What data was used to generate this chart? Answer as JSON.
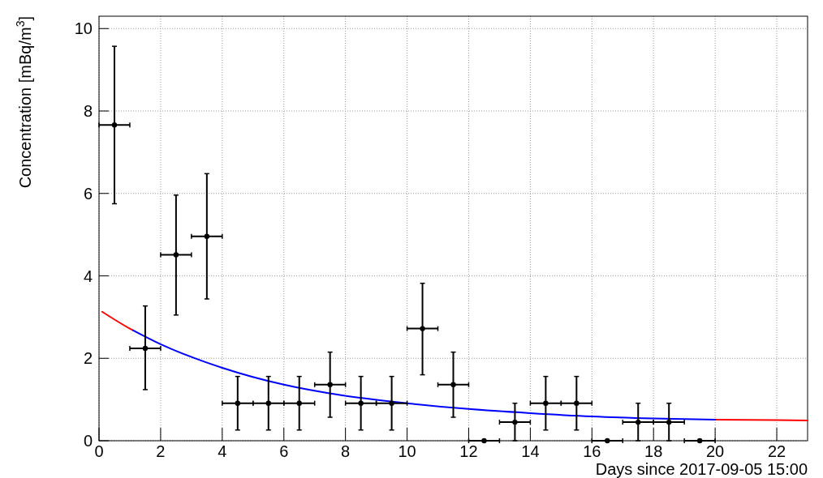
{
  "chart_data": {
    "type": "scatter",
    "xlabel": "Days since 2017-09-05 15:00",
    "ylabel": "Concentration [mBq/m$^{3}$]",
    "xlim": [
      0,
      23
    ],
    "xticks": [
      0,
      2,
      4,
      6,
      8,
      10,
      12,
      14,
      16,
      18,
      20,
      22
    ],
    "ylim": [
      0,
      10.3
    ],
    "yticks": [
      0,
      2,
      4,
      6,
      8,
      10
    ],
    "grid": true,
    "marker": "circle",
    "series": [
      {
        "type": "line",
        "color": "#ff0000",
        "marker": "none",
        "x": [
          0.1,
          1,
          1.1,
          10,
          20,
          22,
          23
        ],
        "values": [
          3.13,
          2.72,
          2.68,
          null,
          0.51,
          0.5,
          0.49
        ]
      },
      {
        "type": "line",
        "color": "#0000ff",
        "marker": "none",
        "x": [
          1.1,
          2,
          4,
          6,
          7.9,
          10,
          12,
          14,
          16,
          18,
          20
        ],
        "values": [
          2.68,
          2.34,
          1.77,
          1.36,
          1.1,
          0.91,
          0.77,
          0.67,
          0.59,
          0.54,
          0.51
        ]
      },
      {
        "color": "#000000",
        "x": [
          0.5,
          1.5,
          2.5,
          3.5,
          4.5,
          5.5,
          6.5,
          7.5,
          8.5,
          9.5,
          10.5,
          11.5,
          12.5,
          13.5,
          14.5,
          15.5,
          16.5,
          17.5,
          18.5,
          19.5
        ],
        "values": [
          7.66,
          2.24,
          4.51,
          4.96,
          0.91,
          0.91,
          0.91,
          1.36,
          0.91,
          0.91,
          2.72,
          1.36,
          0,
          0.45,
          0.91,
          0.91,
          0,
          0.45,
          0.45,
          0
        ],
        "errors": [
          [
            5.75,
            9.57
          ],
          [
            1.24,
            3.27
          ],
          [
            3.05,
            5.96
          ],
          [
            3.44,
            6.48
          ],
          [
            0.26,
            1.56
          ],
          [
            0.26,
            1.56
          ],
          [
            0.26,
            1.56
          ],
          [
            0.57,
            2.15
          ],
          [
            0.26,
            1.56
          ],
          [
            0.26,
            1.56
          ],
          [
            1.6,
            3.82
          ],
          [
            0.57,
            2.15
          ],
          null,
          [
            0,
            0.91
          ],
          [
            0.26,
            1.56
          ],
          [
            0.26,
            1.56
          ],
          null,
          [
            0,
            0.91
          ],
          [
            0,
            0.91
          ],
          null
        ],
        "xerrors": [
          0.5,
          0.5,
          0.5,
          0.5,
          0.5,
          0.5,
          0.5,
          0.5,
          0.5,
          0.5,
          0.5,
          0.5,
          0.5,
          0.5,
          0.5,
          0.5,
          0.5,
          0.5,
          0.5,
          0.5
        ]
      }
    ]
  }
}
